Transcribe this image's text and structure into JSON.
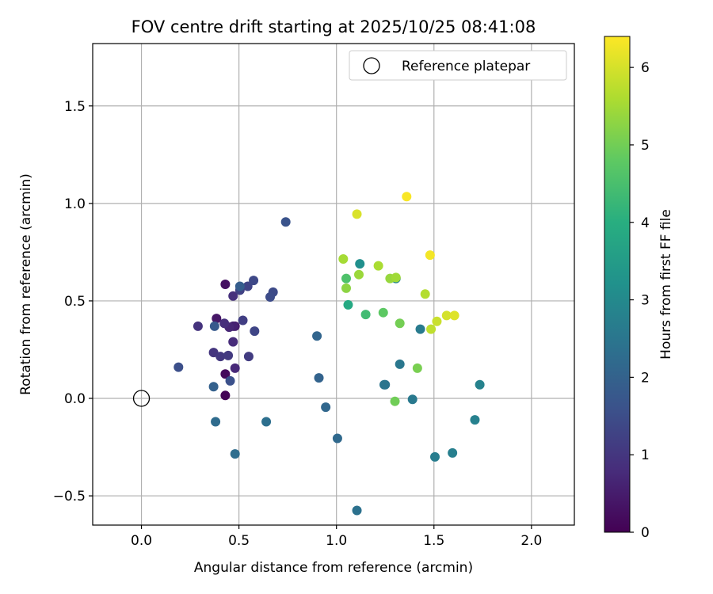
{
  "chart_data": {
    "type": "scatter",
    "title": "FOV centre drift starting at 2025/10/25 08:41:08",
    "xlabel": "Angular distance from reference (arcmin)",
    "ylabel": "Rotation from reference (arcmin)",
    "xlim": [
      -0.25,
      2.22
    ],
    "ylim": [
      -0.65,
      1.82
    ],
    "xticks": [
      0.0,
      0.5,
      1.0,
      1.5,
      2.0
    ],
    "xtick_labels": [
      "0.0",
      "0.5",
      "1.0",
      "1.5",
      "2.0"
    ],
    "yticks": [
      -0.5,
      0.0,
      0.5,
      1.0,
      1.5
    ],
    "ytick_labels": [
      "−0.5",
      "0.0",
      "0.5",
      "1.0",
      "1.5"
    ],
    "grid": true,
    "legend": {
      "position": "top-right",
      "entries": [
        "Reference platepar"
      ]
    },
    "reference_point": {
      "x": 0.0,
      "y": 0.0,
      "label": "Reference platepar"
    },
    "colorbar": {
      "label": "Hours from first FF file",
      "min": 0,
      "max": 6.4,
      "ticks": [
        0,
        1,
        2,
        3,
        4,
        5,
        6
      ],
      "tick_labels": [
        "0",
        "1",
        "2",
        "3",
        "4",
        "5",
        "6"
      ],
      "colormap": "viridis"
    },
    "points": [
      {
        "x": 0.43,
        "y": 0.015,
        "t": 0.05
      },
      {
        "x": 0.43,
        "y": 0.125,
        "t": 0.15
      },
      {
        "x": 0.43,
        "y": 0.585,
        "t": 0.3
      },
      {
        "x": 0.385,
        "y": 0.41,
        "t": 0.4
      },
      {
        "x": 0.48,
        "y": 0.37,
        "t": 0.5
      },
      {
        "x": 0.47,
        "y": 0.37,
        "t": 0.6
      },
      {
        "x": 0.45,
        "y": 0.365,
        "t": 0.7
      },
      {
        "x": 0.48,
        "y": 0.155,
        "t": 0.75
      },
      {
        "x": 0.47,
        "y": 0.29,
        "t": 0.8
      },
      {
        "x": 0.425,
        "y": 0.385,
        "t": 0.85
      },
      {
        "x": 0.47,
        "y": 0.525,
        "t": 0.9
      },
      {
        "x": 0.29,
        "y": 0.37,
        "t": 0.95
      },
      {
        "x": 0.37,
        "y": 0.235,
        "t": 1.0
      },
      {
        "x": 0.405,
        "y": 0.215,
        "t": 1.05
      },
      {
        "x": 0.445,
        "y": 0.22,
        "t": 1.1
      },
      {
        "x": 0.55,
        "y": 0.215,
        "t": 1.15
      },
      {
        "x": 0.52,
        "y": 0.4,
        "t": 1.2
      },
      {
        "x": 0.505,
        "y": 0.555,
        "t": 1.25
      },
      {
        "x": 0.545,
        "y": 0.575,
        "t": 1.3
      },
      {
        "x": 0.58,
        "y": 0.345,
        "t": 1.35
      },
      {
        "x": 0.575,
        "y": 0.605,
        "t": 1.4
      },
      {
        "x": 0.675,
        "y": 0.545,
        "t": 1.45
      },
      {
        "x": 0.66,
        "y": 0.52,
        "t": 1.5
      },
      {
        "x": 0.19,
        "y": 0.16,
        "t": 1.55
      },
      {
        "x": 0.455,
        "y": 0.09,
        "t": 1.6
      },
      {
        "x": 0.74,
        "y": 0.905,
        "t": 1.65
      },
      {
        "x": 0.375,
        "y": 0.37,
        "t": 1.8
      },
      {
        "x": 0.505,
        "y": 0.575,
        "t": 1.9
      },
      {
        "x": 0.37,
        "y": 0.06,
        "t": 2.0
      },
      {
        "x": 0.91,
        "y": 0.105,
        "t": 2.05
      },
      {
        "x": 0.9,
        "y": 0.32,
        "t": 2.1
      },
      {
        "x": 0.945,
        "y": -0.045,
        "t": 2.15
      },
      {
        "x": 1.005,
        "y": -0.205,
        "t": 2.2
      },
      {
        "x": 0.38,
        "y": -0.12,
        "t": 2.25
      },
      {
        "x": 0.48,
        "y": -0.285,
        "t": 2.3
      },
      {
        "x": 0.64,
        "y": -0.12,
        "t": 2.35
      },
      {
        "x": 1.105,
        "y": -0.575,
        "t": 2.4
      },
      {
        "x": 1.25,
        "y": 0.07,
        "t": 2.45
      },
      {
        "x": 1.245,
        "y": 0.07,
        "t": 2.5
      },
      {
        "x": 1.325,
        "y": 0.175,
        "t": 2.55
      },
      {
        "x": 1.39,
        "y": -0.005,
        "t": 2.6
      },
      {
        "x": 1.43,
        "y": 0.355,
        "t": 2.65
      },
      {
        "x": 1.505,
        "y": -0.3,
        "t": 2.7
      },
      {
        "x": 1.595,
        "y": -0.28,
        "t": 2.75
      },
      {
        "x": 1.71,
        "y": -0.11,
        "t": 2.8
      },
      {
        "x": 1.735,
        "y": 0.07,
        "t": 2.85
      },
      {
        "x": 1.305,
        "y": 0.615,
        "t": 2.95
      },
      {
        "x": 1.12,
        "y": 0.69,
        "t": 3.2
      },
      {
        "x": 1.06,
        "y": 0.48,
        "t": 3.9
      },
      {
        "x": 1.15,
        "y": 0.43,
        "t": 4.4
      },
      {
        "x": 1.05,
        "y": 0.615,
        "t": 4.6
      },
      {
        "x": 1.24,
        "y": 0.44,
        "t": 4.8
      },
      {
        "x": 1.3,
        "y": -0.015,
        "t": 5.0
      },
      {
        "x": 1.325,
        "y": 0.385,
        "t": 5.05
      },
      {
        "x": 1.415,
        "y": 0.155,
        "t": 5.1
      },
      {
        "x": 1.05,
        "y": 0.565,
        "t": 5.3
      },
      {
        "x": 1.275,
        "y": 0.615,
        "t": 5.4
      },
      {
        "x": 1.115,
        "y": 0.635,
        "t": 5.45
      },
      {
        "x": 1.305,
        "y": 0.62,
        "t": 5.5
      },
      {
        "x": 1.035,
        "y": 0.715,
        "t": 5.55
      },
      {
        "x": 1.215,
        "y": 0.68,
        "t": 5.6
      },
      {
        "x": 1.455,
        "y": 0.535,
        "t": 5.7
      },
      {
        "x": 1.485,
        "y": 0.355,
        "t": 5.8
      },
      {
        "x": 1.515,
        "y": 0.395,
        "t": 5.9
      },
      {
        "x": 1.565,
        "y": 0.425,
        "t": 6.0
      },
      {
        "x": 1.105,
        "y": 0.945,
        "t": 6.05
      },
      {
        "x": 1.605,
        "y": 0.425,
        "t": 6.1
      },
      {
        "x": 1.48,
        "y": 0.735,
        "t": 6.3
      },
      {
        "x": 1.36,
        "y": 1.035,
        "t": 6.35
      }
    ]
  }
}
